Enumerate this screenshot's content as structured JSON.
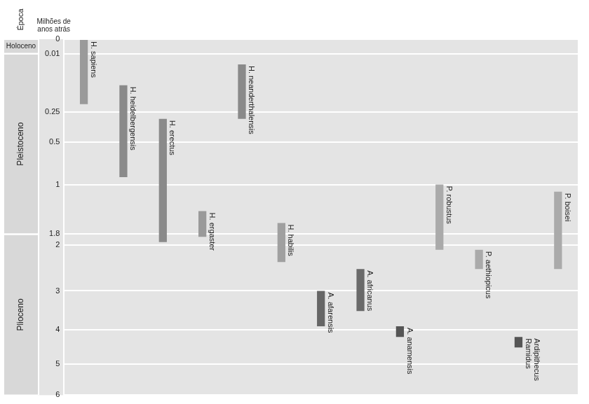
{
  "chart_data": {
    "type": "bar",
    "epoch_label": "Época",
    "y_label": "Milhões de anos atrás",
    "categories": [
      "H. sapiens",
      "H. heidelbergensis",
      "H. erectus",
      "H. ergaster",
      "H. neanderthalensis",
      "H. habilis",
      "A. afarensis",
      "A. africanus",
      "A. anamensis",
      "P. robustus",
      "P. aethiopicus",
      "Ardipithecus Ramidus",
      "P. boisei"
    ],
    "values": [
      [
        0,
        0.2
      ],
      [
        0.1,
        0.9
      ],
      [
        0.3,
        1.95
      ],
      [
        1.4,
        1.85
      ],
      [
        0.03,
        0.3
      ],
      [
        1.6,
        2.35
      ],
      [
        3.0,
        3.9
      ],
      [
        2.5,
        3.5
      ],
      [
        3.9,
        4.2
      ],
      [
        1.0,
        2.1
      ],
      [
        2.1,
        2.5
      ],
      [
        4.2,
        4.5
      ],
      [
        1.1,
        2.5
      ]
    ],
    "colors": [
      "#9a9a9a",
      "#8a8a8a",
      "#8a8a8a",
      "#9a9a9a",
      "#8a8a8a",
      "#a0a0a0",
      "#666666",
      "#6a6a6a",
      "#555555",
      "#aaaaaa",
      "#aaaaaa",
      "#555555",
      "#aaaaaa"
    ],
    "epochs": [
      {
        "name": "Holoceno",
        "start": 0,
        "end": 0.01
      },
      {
        "name": "Pleistoceno",
        "start": 0.01,
        "end": 1.8
      },
      {
        "name": "Plioceno",
        "start": 1.8,
        "end": 6
      }
    ],
    "ylim": [
      0,
      6
    ],
    "yticks": [
      0,
      0.01,
      0.25,
      0.5,
      1,
      1.8,
      2,
      3,
      4,
      5,
      6
    ],
    "grid": true,
    "tick_labels": "y"
  }
}
